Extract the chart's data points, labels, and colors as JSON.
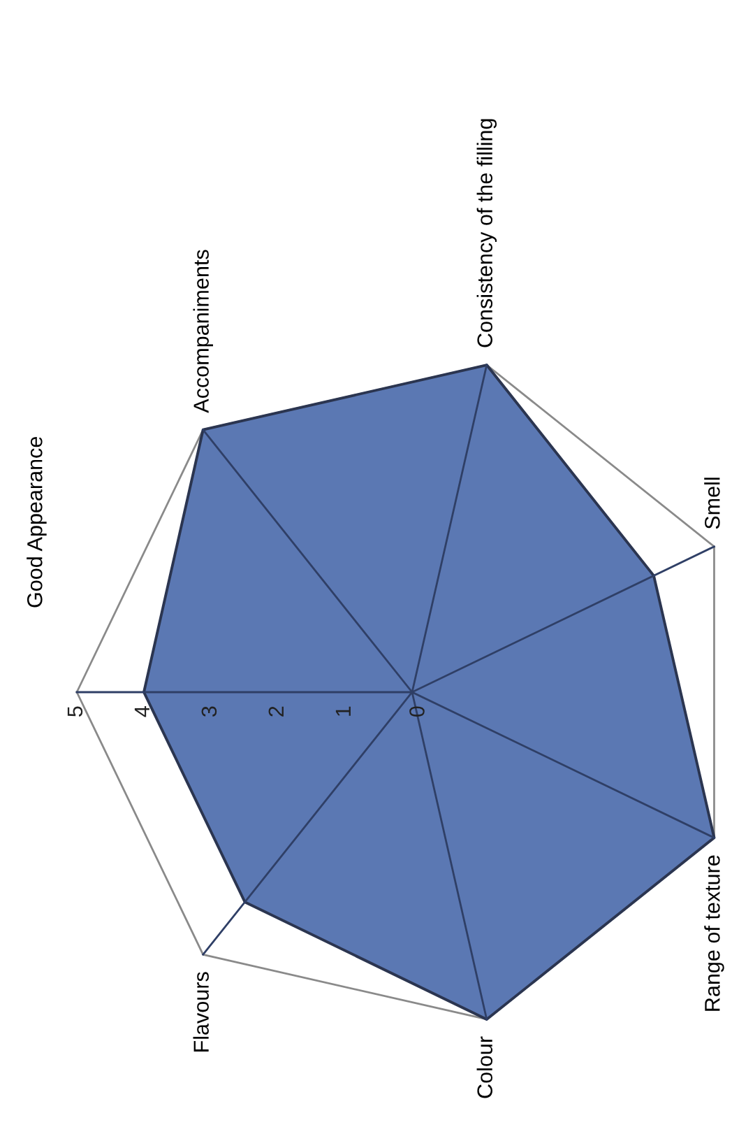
{
  "chart_data": {
    "type": "radar",
    "categories": [
      "Good Appearance",
      "Accompaniments",
      "Consistency of the filling",
      "Smell",
      "Range of texture",
      "Colour",
      "Flavours"
    ],
    "series": [
      {
        "color": "#5b78b3",
        "values": [
          4,
          5,
          5,
          4,
          5,
          5,
          4
        ]
      }
    ],
    "ylim": [
      0,
      5
    ],
    "yticks": [
      0,
      1,
      2,
      3,
      4,
      5
    ],
    "grid": true
  }
}
